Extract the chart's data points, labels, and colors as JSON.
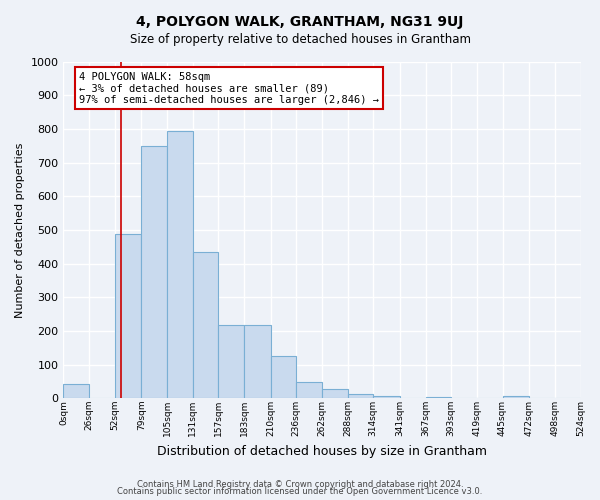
{
  "title": "4, POLYGON WALK, GRANTHAM, NG31 9UJ",
  "subtitle": "Size of property relative to detached houses in Grantham",
  "xlabel": "Distribution of detached houses by size in Grantham",
  "ylabel": "Number of detached properties",
  "bar_color": "#c9daee",
  "bar_edge_color": "#7aafd4",
  "plot_bg_color": "#eef2f8",
  "fig_bg_color": "#eef2f8",
  "grid_color": "#ffffff",
  "bin_edges": [
    0,
    26,
    52,
    79,
    105,
    131,
    157,
    183,
    210,
    236,
    262,
    288,
    314,
    341,
    367,
    393,
    419,
    445,
    472,
    498,
    524
  ],
  "bin_labels": [
    "0sqm",
    "26sqm",
    "52sqm",
    "79sqm",
    "105sqm",
    "131sqm",
    "157sqm",
    "183sqm",
    "210sqm",
    "236sqm",
    "262sqm",
    "288sqm",
    "314sqm",
    "341sqm",
    "367sqm",
    "393sqm",
    "419sqm",
    "445sqm",
    "472sqm",
    "498sqm",
    "524sqm"
  ],
  "counts": [
    42,
    0,
    487,
    748,
    793,
    435,
    218,
    218,
    127,
    50,
    28,
    14,
    8,
    0,
    5,
    0,
    0,
    8,
    0,
    0
  ],
  "ylim": [
    0,
    1000
  ],
  "yticks": [
    0,
    100,
    200,
    300,
    400,
    500,
    600,
    700,
    800,
    900,
    1000
  ],
  "property_line_x": 58,
  "property_line_color": "#cc0000",
  "annotation_text_line1": "4 POLYGON WALK: 58sqm",
  "annotation_text_line2": "← 3% of detached houses are smaller (89)",
  "annotation_text_line3": "97% of semi-detached houses are larger (2,846) →",
  "annotation_box_color": "#ffffff",
  "annotation_box_edge": "#cc0000",
  "footer_line1": "Contains HM Land Registry data © Crown copyright and database right 2024.",
  "footer_line2": "Contains public sector information licensed under the Open Government Licence v3.0."
}
